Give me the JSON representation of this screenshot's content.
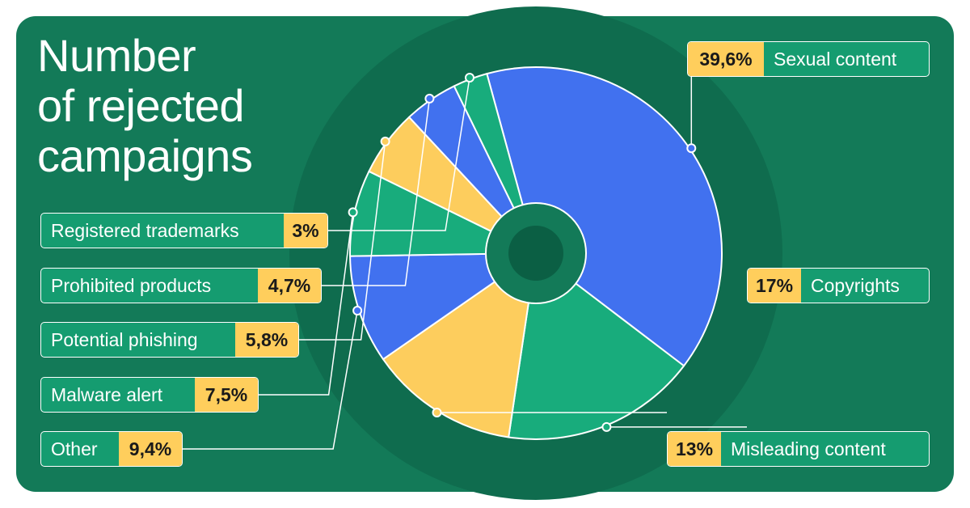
{
  "chart_data": {
    "type": "pie",
    "title": [
      "Number",
      "of rejected",
      "campaigns"
    ],
    "slices": [
      {
        "label": "Sexual content",
        "value": 39.6,
        "display": "39,6%",
        "color": "#4171ef"
      },
      {
        "label": "Copyrights",
        "value": 17,
        "display": "17%",
        "color": "#18ac7c"
      },
      {
        "label": "Misleading content",
        "value": 13,
        "display": "13%",
        "color": "#fdcd5d"
      },
      {
        "label": "Other",
        "value": 9.4,
        "display": "9,4%",
        "color": "#4171ef"
      },
      {
        "label": "Malware alert",
        "value": 7.5,
        "display": "7,5%",
        "color": "#18ac7c"
      },
      {
        "label": "Potential phishing",
        "value": 5.8,
        "display": "5,8%",
        "color": "#fdcd5d"
      },
      {
        "label": "Prohibited products",
        "value": 4.7,
        "display": "4,7%",
        "color": "#4171ef"
      },
      {
        "label": "Registered trademarks",
        "value": 3,
        "display": "3%",
        "color": "#18ac7c"
      }
    ]
  },
  "colors": {
    "card_background": "#137a58",
    "halo": "#0f6c4e",
    "center": "#0b5f44",
    "label_background": "#159c70",
    "percent_background": "#ffce5c"
  }
}
